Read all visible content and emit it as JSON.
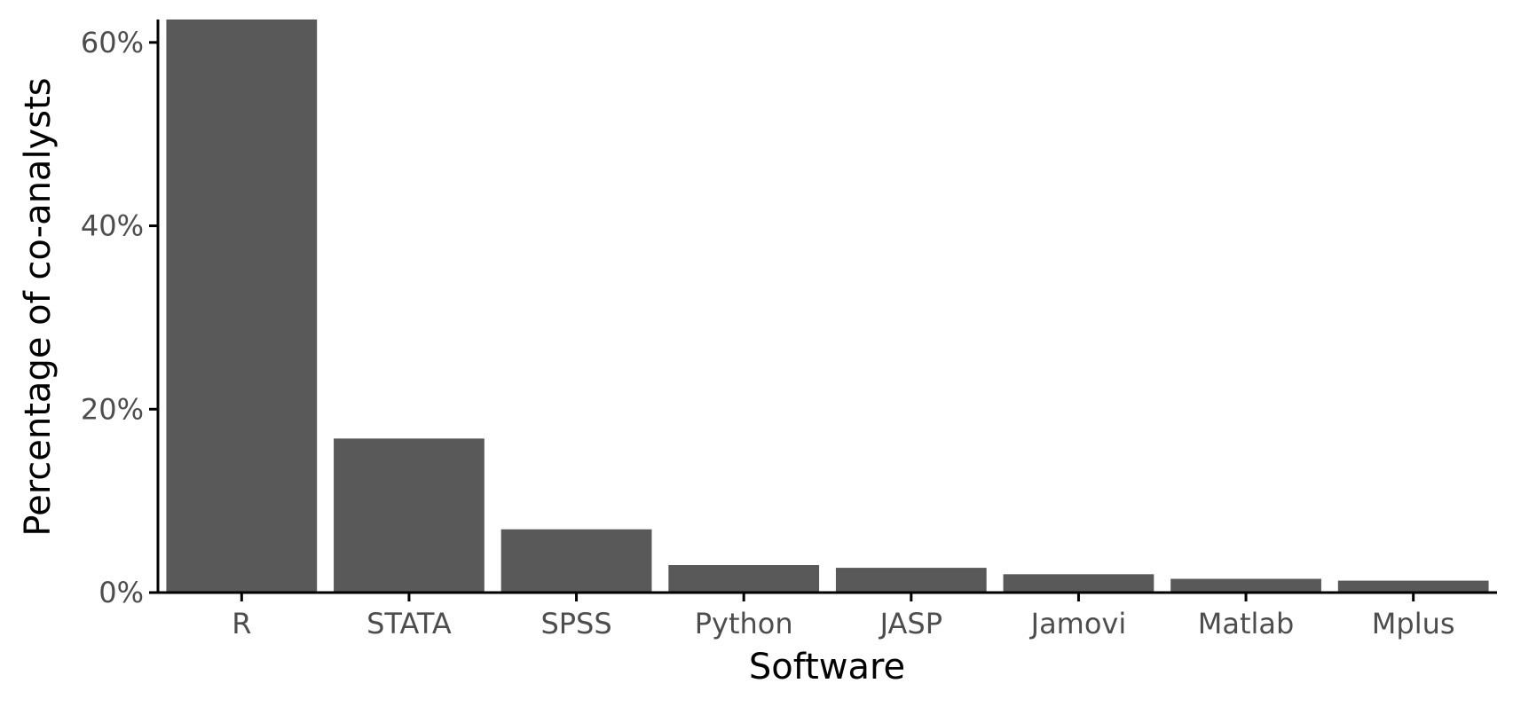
{
  "chart_data": {
    "type": "bar",
    "title": "",
    "xlabel": "Software",
    "ylabel": "Percentage of co-analysts",
    "categories": [
      "R",
      "STATA",
      "SPSS",
      "Python",
      "JASP",
      "Jamovi",
      "Matlab",
      "Mplus"
    ],
    "values": [
      62.5,
      16.8,
      6.9,
      3.0,
      2.7,
      2.0,
      1.5,
      1.3
    ],
    "ylim": [
      0,
      62.5
    ],
    "yticks": [
      0,
      20,
      40,
      60
    ],
    "ytick_labels": [
      "0%",
      "20%",
      "40%",
      "60%"
    ],
    "grid": false,
    "legend": "none",
    "bar_color": "#595959"
  }
}
